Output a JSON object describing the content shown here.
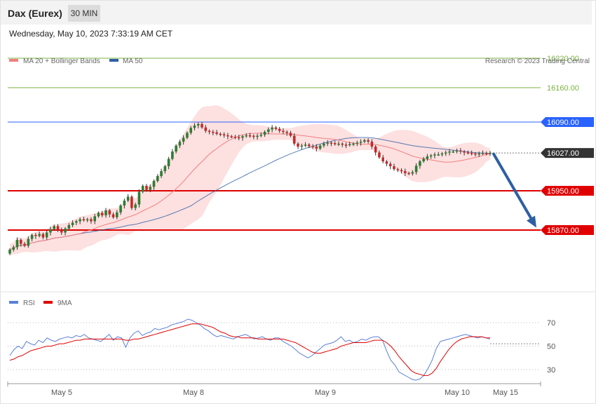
{
  "header": {
    "title": "Dax (Eurex)",
    "timeframe": "30 MIN",
    "datetime": "Wednesday, May 10, 2023 7:33:19 AM CET"
  },
  "legend": {
    "ma20_label": "MA 20 + Bollinger Bands",
    "ma20_color": "#f08080",
    "ma50_label": "MA 50",
    "ma50_color": "#2e5fa3",
    "credit": "Research © 2023 Trading Central"
  },
  "rsi_legend": {
    "rsi_label": "RSI",
    "rsi_color": "#5a7fd8",
    "ma_label": "9MA",
    "ma_color": "#e00000"
  },
  "chart_data": [
    {
      "type": "candlestick",
      "title": "Dax (Eurex)",
      "x_tick_labels": [
        "May 5",
        "May 8",
        "May 9",
        "May 10",
        "May 15"
      ],
      "ylim": [
        15800,
        16250
      ],
      "levels": [
        {
          "label": "16220.00",
          "value": 16220,
          "kind": "target",
          "color": "#7cb342"
        },
        {
          "label": "16160.00",
          "value": 16160,
          "kind": "target",
          "color": "#7cb342"
        },
        {
          "label": "16090.00",
          "value": 16090,
          "kind": "pivot",
          "color": "#2962ff"
        },
        {
          "label": "16027.00",
          "value": 16027,
          "kind": "last",
          "color": "#333333"
        },
        {
          "label": "15950.00",
          "value": 15950,
          "kind": "support",
          "color": "#e00000"
        },
        {
          "label": "15870.00",
          "value": 15870,
          "kind": "support",
          "color": "#e00000"
        }
      ],
      "forecast_arrow": {
        "from": 16025,
        "to": 15875,
        "color": "#2e5fa3"
      },
      "closes": [
        15830,
        15835,
        15850,
        15842,
        15838,
        15852,
        15860,
        15858,
        15862,
        15855,
        15865,
        15872,
        15878,
        15870,
        15865,
        15873,
        15880,
        15885,
        15888,
        15892,
        15890,
        15892,
        15888,
        15898,
        15905,
        15900,
        15910,
        15902,
        15896,
        15906,
        15920,
        15930,
        15938,
        15915,
        15922,
        15948,
        15960,
        15952,
        15958,
        15970,
        15980,
        15990,
        16000,
        16015,
        16030,
        16042,
        16050,
        16058,
        16068,
        16078,
        16083,
        16086,
        16079,
        16072,
        16070,
        16069,
        16066,
        16065,
        16063,
        16061,
        16060,
        16059,
        16058,
        16061,
        16063,
        16062,
        16060,
        16062,
        16064,
        16070,
        16075,
        16079,
        16076,
        16072,
        16070,
        16068,
        16062,
        16046,
        16040,
        16042,
        16044,
        16041,
        16040,
        16036,
        16042,
        16046,
        16048,
        16047,
        16045,
        16046,
        16044,
        16043,
        16045,
        16046,
        16048,
        16050,
        16053,
        16050,
        16040,
        16028,
        16018,
        16010,
        16005,
        16000,
        15994,
        15992,
        15990,
        15986,
        15985,
        15988,
        16001,
        16010,
        16015,
        16020,
        16022,
        16024,
        16024,
        16026,
        16028,
        16030,
        16030,
        16032,
        16030,
        16028,
        16027,
        16026,
        16025,
        16026,
        16027,
        16026,
        16027
      ]
    },
    {
      "type": "line",
      "title": "RSI",
      "series": [
        {
          "name": "RSI"
        },
        {
          "name": "9MA"
        }
      ],
      "y_tick_labels": [
        "70",
        "50",
        "30"
      ],
      "ylim": [
        20,
        80
      ],
      "rsi": [
        42,
        47,
        50,
        48,
        54,
        52,
        51,
        55,
        53,
        57,
        55,
        54,
        56,
        57,
        58,
        57,
        59,
        58,
        60,
        57,
        56,
        55,
        54,
        57,
        60,
        55,
        58,
        57,
        49,
        57,
        61,
        63,
        59,
        61,
        62,
        65,
        64,
        65,
        66,
        68,
        69,
        70,
        71,
        73,
        72,
        70,
        68,
        65,
        63,
        60,
        58,
        59,
        58,
        57,
        56,
        58,
        59,
        60,
        58,
        56,
        57,
        58,
        56,
        55,
        57,
        57,
        54,
        52,
        50,
        47,
        44,
        42,
        40,
        42,
        45,
        48,
        51,
        52,
        53,
        55,
        58,
        54,
        55,
        53,
        54,
        56,
        55,
        57,
        58,
        58,
        55,
        46,
        38,
        34,
        28,
        26,
        24,
        22,
        21,
        22,
        25,
        31,
        38,
        48,
        54,
        55,
        56,
        57,
        58,
        59,
        60,
        59,
        58,
        57,
        58,
        57,
        56
      ],
      "ma9": [
        38,
        39,
        41,
        42,
        44,
        46,
        47,
        48,
        49,
        50,
        50,
        51,
        52,
        52,
        53,
        54,
        55,
        55,
        56,
        56,
        56,
        56,
        56,
        56,
        56,
        56,
        56,
        56,
        55,
        55,
        56,
        56,
        57,
        58,
        59,
        60,
        61,
        62,
        63,
        64,
        65,
        66,
        67,
        68,
        69,
        69,
        69,
        68,
        67,
        66,
        64,
        62,
        61,
        59,
        58,
        58,
        57,
        57,
        57,
        57,
        56,
        56,
        56,
        56,
        56,
        56,
        56,
        55,
        54,
        53,
        51,
        49,
        47,
        45,
        44,
        44,
        45,
        46,
        47,
        48,
        50,
        51,
        52,
        53,
        53,
        53,
        53,
        54,
        55,
        55,
        55,
        53,
        50,
        46,
        41,
        37,
        33,
        29,
        27,
        26,
        25,
        25,
        27,
        31,
        37,
        42,
        47,
        51,
        54,
        56,
        57,
        58,
        58,
        58,
        58,
        57,
        57
      ]
    }
  ]
}
